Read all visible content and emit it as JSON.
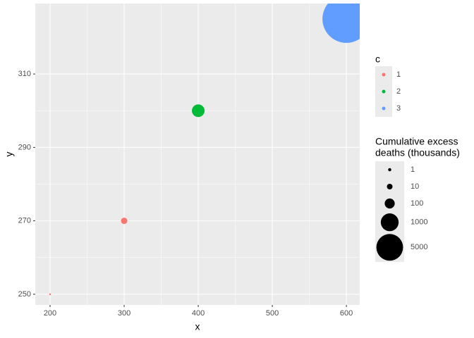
{
  "chart_data": {
    "type": "scatter",
    "x_label": "x",
    "y_label": "y",
    "xlim": [
      180,
      618
    ],
    "ylim": [
      247.1,
      329.2
    ],
    "xticks": [
      200,
      300,
      400,
      500,
      600
    ],
    "yticks": [
      250,
      270,
      290,
      310
    ],
    "grid": true,
    "color_legend_title": "c",
    "series": [
      {
        "name": "1",
        "color": "#F8766D",
        "x": [
          200,
          300
        ],
        "y": [
          250,
          270
        ],
        "size": [
          0.1,
          16
        ]
      },
      {
        "name": "2",
        "color": "#00BA38",
        "x": [
          400
        ],
        "y": [
          300
        ],
        "size": [
          256
        ]
      },
      {
        "name": "3",
        "color": "#619CFF",
        "x": [
          600
        ],
        "y": [
          325
        ],
        "size": [
          52000
        ]
      }
    ],
    "size_legend_title": [
      "Cumulative excess",
      "deaths (thousands)"
    ],
    "size_breaks": [
      1,
      10,
      100,
      1000,
      5000
    ],
    "legend_position": "right"
  }
}
